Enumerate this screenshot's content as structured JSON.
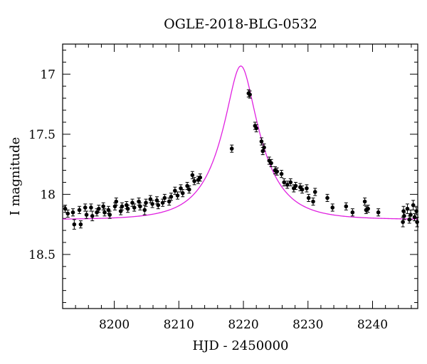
{
  "chart_data": {
    "type": "scatter",
    "title": "OGLE-2018-BLG-0532",
    "xlabel": "HJD - 2450000",
    "ylabel": "I magnitude",
    "xlim": [
      8192,
      8247
    ],
    "ylim": [
      18.95,
      16.75
    ],
    "y_inverted": true,
    "x_ticks": [
      8200,
      8210,
      8220,
      8230,
      8240
    ],
    "x_tick_labels": [
      "8200",
      "8210",
      "8220",
      "8230",
      "8240"
    ],
    "y_ticks": [
      17,
      17.5,
      18,
      18.5
    ],
    "y_tick_labels": [
      "17",
      "17.5",
      "18",
      "18.5"
    ],
    "grid": false,
    "colors": {
      "points": "#000000",
      "model": "#e020e0"
    },
    "series": [
      {
        "kind": "points_with_errorbars",
        "points": [
          [
            8192.4,
            18.12,
            0.03
          ],
          [
            8192.8,
            18.16,
            0.03
          ],
          [
            8193.6,
            18.15,
            0.03
          ],
          [
            8193.8,
            18.25,
            0.04
          ],
          [
            8194.6,
            18.13,
            0.03
          ],
          [
            8194.8,
            18.25,
            0.03
          ],
          [
            8195.5,
            18.11,
            0.03
          ],
          [
            8195.7,
            18.17,
            0.03
          ],
          [
            8196.4,
            18.11,
            0.03
          ],
          [
            8196.6,
            18.18,
            0.04
          ],
          [
            8197.3,
            18.15,
            0.03
          ],
          [
            8197.6,
            18.12,
            0.03
          ],
          [
            8198.3,
            18.1,
            0.03
          ],
          [
            8198.5,
            18.15,
            0.03
          ],
          [
            8199.1,
            18.13,
            0.03
          ],
          [
            8199.3,
            18.17,
            0.03
          ],
          [
            8200.1,
            18.1,
            0.03
          ],
          [
            8200.3,
            18.06,
            0.03
          ],
          [
            8201.0,
            18.14,
            0.03
          ],
          [
            8201.2,
            18.1,
            0.03
          ],
          [
            8201.9,
            18.09,
            0.03
          ],
          [
            8202.1,
            18.12,
            0.03
          ],
          [
            8202.8,
            18.07,
            0.03
          ],
          [
            8203.1,
            18.11,
            0.03
          ],
          [
            8203.8,
            18.06,
            0.03
          ],
          [
            8204.0,
            18.1,
            0.03
          ],
          [
            8204.7,
            18.13,
            0.04
          ],
          [
            8204.9,
            18.07,
            0.03
          ],
          [
            8205.6,
            18.04,
            0.03
          ],
          [
            8205.9,
            18.08,
            0.03
          ],
          [
            8206.6,
            18.05,
            0.03
          ],
          [
            8206.8,
            18.09,
            0.03
          ],
          [
            8207.5,
            18.07,
            0.03
          ],
          [
            8207.8,
            18.03,
            0.03
          ],
          [
            8208.5,
            18.06,
            0.03
          ],
          [
            8208.8,
            18.02,
            0.03
          ],
          [
            8209.4,
            17.97,
            0.03
          ],
          [
            8209.8,
            18.01,
            0.03
          ],
          [
            8210.3,
            17.95,
            0.03
          ],
          [
            8210.6,
            17.99,
            0.03
          ],
          [
            8211.3,
            17.93,
            0.03
          ],
          [
            8211.6,
            17.96,
            0.03
          ],
          [
            8212.1,
            17.84,
            0.03
          ],
          [
            8212.4,
            17.89,
            0.03
          ],
          [
            8213.0,
            17.88,
            0.03
          ],
          [
            8213.3,
            17.86,
            0.03
          ],
          [
            8218.2,
            17.62,
            0.03
          ],
          [
            8220.8,
            17.16,
            0.03
          ],
          [
            8221.0,
            17.17,
            0.03
          ],
          [
            8221.8,
            17.43,
            0.03
          ],
          [
            8222.0,
            17.45,
            0.03
          ],
          [
            8222.8,
            17.56,
            0.03
          ],
          [
            8223.0,
            17.64,
            0.03
          ],
          [
            8223.2,
            17.61,
            0.03
          ],
          [
            8224.0,
            17.72,
            0.03
          ],
          [
            8224.3,
            17.74,
            0.03
          ],
          [
            8224.9,
            17.8,
            0.03
          ],
          [
            8225.2,
            17.81,
            0.03
          ],
          [
            8225.9,
            17.83,
            0.03
          ],
          [
            8226.3,
            17.9,
            0.03
          ],
          [
            8226.8,
            17.92,
            0.03
          ],
          [
            8227.3,
            17.9,
            0.03
          ],
          [
            8227.8,
            17.95,
            0.03
          ],
          [
            8228.1,
            17.93,
            0.03
          ],
          [
            8228.8,
            17.94,
            0.03
          ],
          [
            8229.1,
            17.96,
            0.03
          ],
          [
            8229.8,
            17.95,
            0.03
          ],
          [
            8230.1,
            18.03,
            0.03
          ],
          [
            8230.8,
            18.06,
            0.03
          ],
          [
            8231.1,
            17.98,
            0.03
          ],
          [
            8233.0,
            18.03,
            0.03
          ],
          [
            8233.8,
            18.11,
            0.03
          ],
          [
            8235.9,
            18.1,
            0.03
          ],
          [
            8236.9,
            18.15,
            0.03
          ],
          [
            8238.8,
            18.06,
            0.03
          ],
          [
            8239.0,
            18.13,
            0.03
          ],
          [
            8239.3,
            18.12,
            0.03
          ],
          [
            8240.9,
            18.15,
            0.03
          ],
          [
            8244.7,
            18.23,
            0.04
          ],
          [
            8244.8,
            18.14,
            0.04
          ],
          [
            8244.9,
            18.18,
            0.03
          ],
          [
            8245.4,
            18.12,
            0.04
          ],
          [
            8245.7,
            18.21,
            0.03
          ],
          [
            8245.9,
            18.17,
            0.04
          ],
          [
            8246.3,
            18.09,
            0.04
          ],
          [
            8246.5,
            18.19,
            0.03
          ],
          [
            8246.8,
            18.14,
            0.03
          ],
          [
            8246.9,
            18.23,
            0.04
          ]
        ]
      },
      {
        "kind": "model_curve",
        "model": {
          "baseline": 18.21,
          "t0": 8219.6,
          "tE": 6.1,
          "u0": 0.32
        }
      }
    ]
  }
}
